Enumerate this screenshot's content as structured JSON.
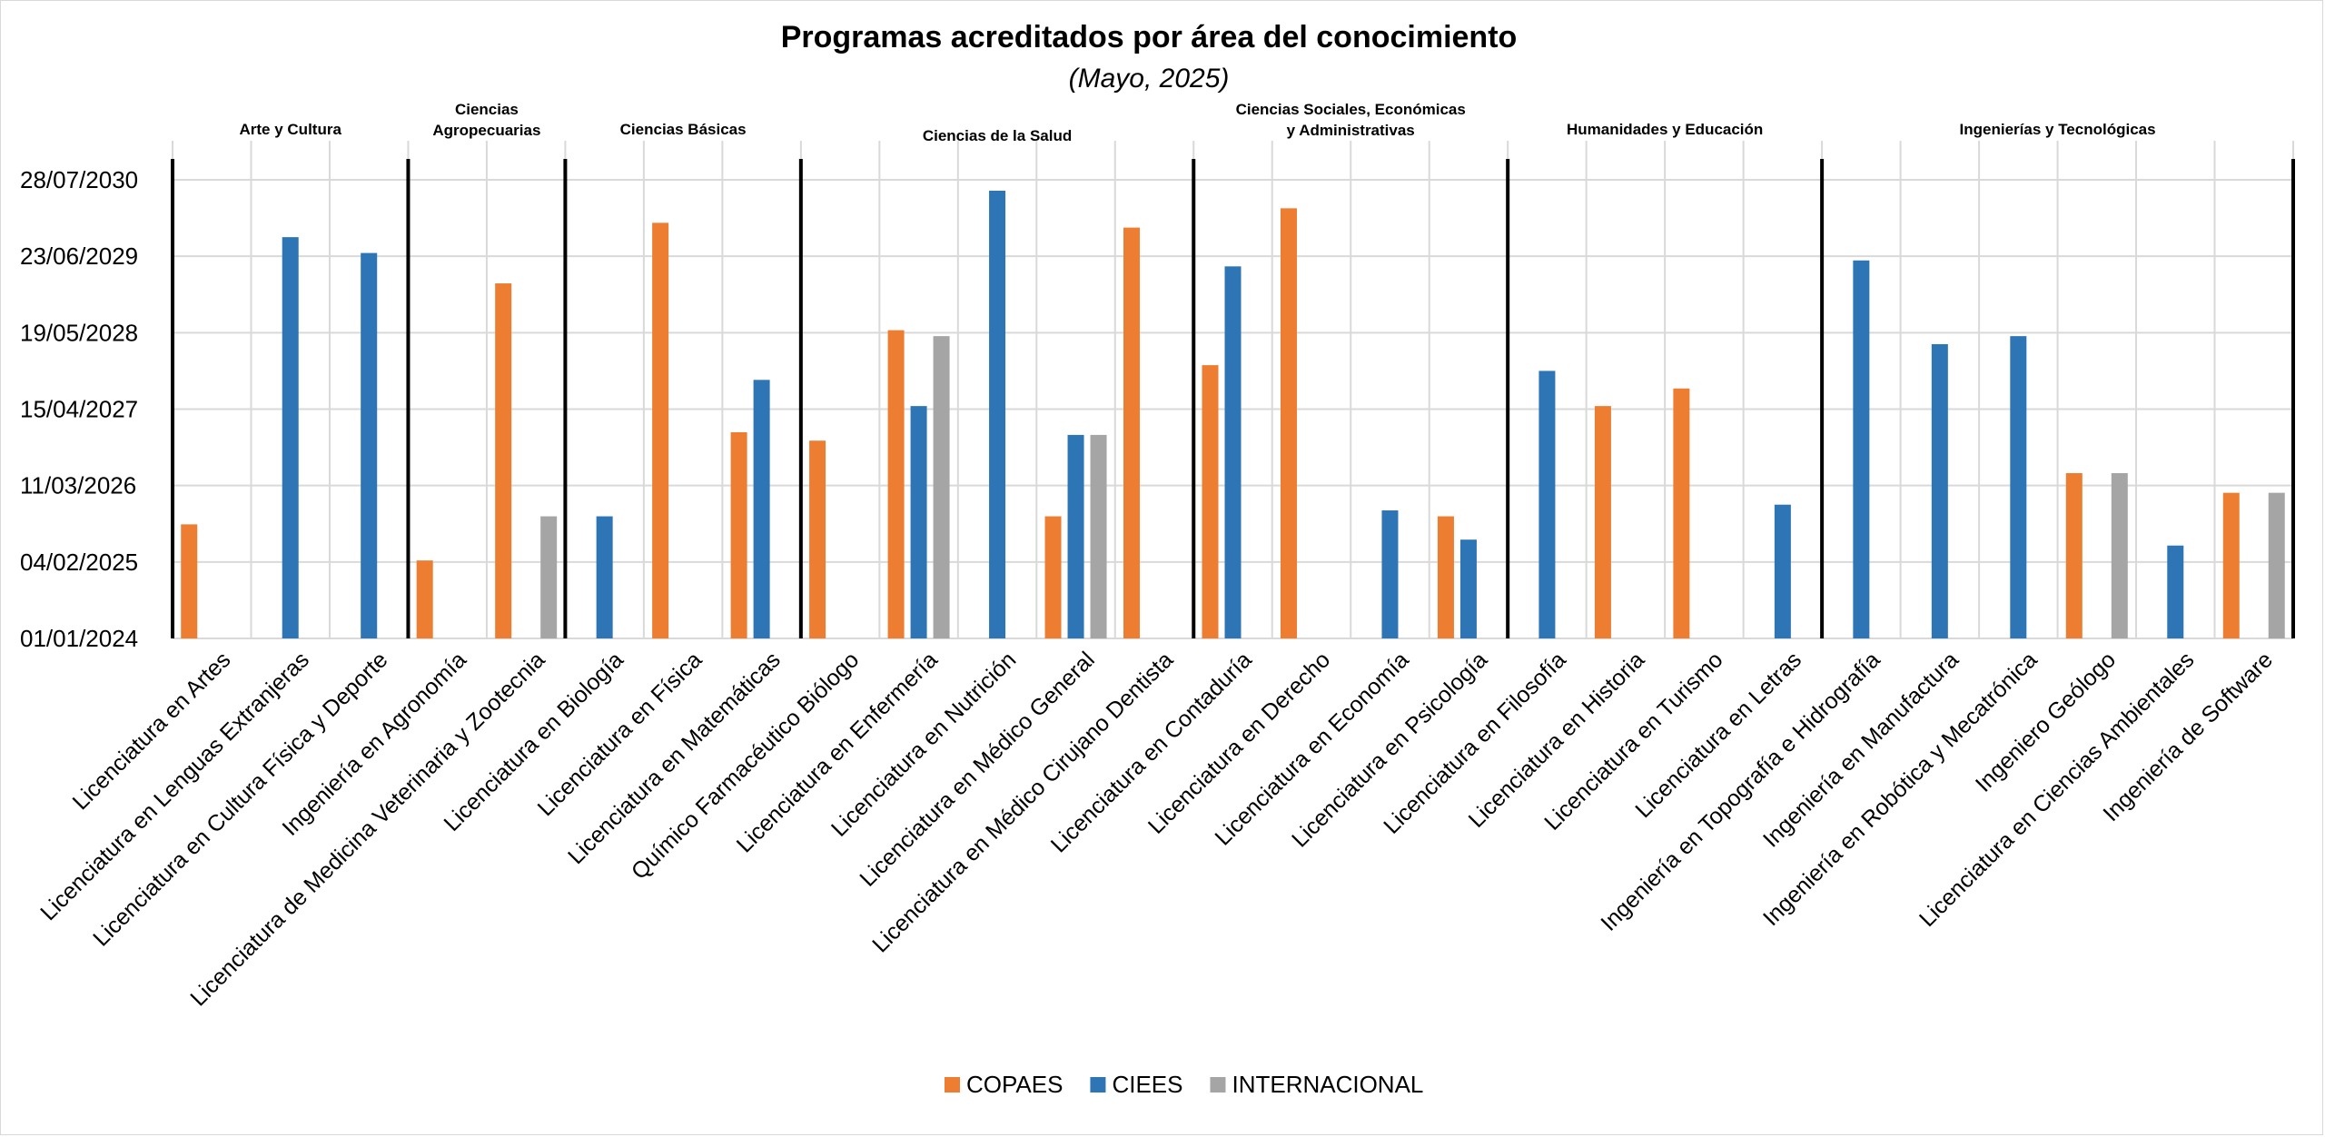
{
  "chart_data": {
    "type": "bar",
    "title": "Programas acreditados por área del conocimiento",
    "subtitle": "(Mayo, 2025)",
    "y_tick_labels": [
      "01/01/2024",
      "04/02/2025",
      "11/03/2026",
      "15/04/2027",
      "19/05/2028",
      "23/06/2029",
      "28/07/2030"
    ],
    "y_ticks": [
      "2024-01-01",
      "2025-02-04",
      "2026-03-11",
      "2027-04-15",
      "2028-05-19",
      "2029-06-23",
      "2030-07-28"
    ],
    "ylim": [
      "2024-01-01",
      "2030-07-28"
    ],
    "grid": true,
    "legend_position": "bottom",
    "colors": {
      "COPAES": "#ED7D31",
      "CIEES": "#2E75B6",
      "INTERNACIONAL": "#A5A5A5"
    },
    "series": [
      {
        "name": "COPAES"
      },
      {
        "name": "CIEES"
      },
      {
        "name": "INTERNACIONAL"
      }
    ],
    "groups": [
      {
        "label": [
          "Arte y Cultura"
        ],
        "categories": [
          0,
          1,
          2
        ]
      },
      {
        "label": [
          "Ciencias",
          "Agropecuarias"
        ],
        "categories": [
          3,
          4
        ]
      },
      {
        "label": [
          "Ciencias Básicas"
        ],
        "categories": [
          5,
          6,
          7
        ]
      },
      {
        "label": [
          "Ciencias de la Salud"
        ],
        "categories": [
          8,
          9,
          10,
          11,
          12
        ]
      },
      {
        "label": [
          "Ciencias Sociales, Económicas",
          "y Administrativas"
        ],
        "categories": [
          13,
          14,
          15,
          16
        ]
      },
      {
        "label": [
          "Humanidades y Educación"
        ],
        "categories": [
          17,
          18,
          19,
          20
        ]
      },
      {
        "label": [
          "Ingenierías y Tecnológicas"
        ],
        "categories": [
          21,
          22,
          23,
          24,
          25,
          26
        ]
      }
    ],
    "categories": [
      {
        "name": "Licenciatura en Artes",
        "COPAES": "2025-08-20",
        "CIEES": null,
        "INTERNACIONAL": null
      },
      {
        "name": "Licenciatura en Lenguas Extranjeras",
        "COPAES": null,
        "CIEES": "2029-10-01",
        "INTERNACIONAL": null
      },
      {
        "name": "Licenciatura en Cultura Física y Deporte",
        "COPAES": null,
        "CIEES": "2029-07-10",
        "INTERNACIONAL": null
      },
      {
        "name": "Ingeniería en Agronomía",
        "COPAES": "2025-02-12",
        "CIEES": null,
        "INTERNACIONAL": null
      },
      {
        "name": "Licenciatura de Medicina Veterinaria y Zootecnia",
        "COPAES": "2029-02-01",
        "CIEES": null,
        "INTERNACIONAL": "2025-10-01"
      },
      {
        "name": "Licenciatura en Biología",
        "COPAES": null,
        "CIEES": "2025-10-01",
        "INTERNACIONAL": null
      },
      {
        "name": "Licenciatura en Física",
        "COPAES": "2029-12-15",
        "CIEES": null,
        "INTERNACIONAL": null
      },
      {
        "name": "Licenciatura en Matemáticas",
        "COPAES": "2026-12-15",
        "CIEES": "2027-09-15",
        "INTERNACIONAL": null
      },
      {
        "name": "Químico Farmacéutico Biólogo",
        "COPAES": "2026-11-01",
        "CIEES": null,
        "INTERNACIONAL": null
      },
      {
        "name": "Licenciatura en Enfermería",
        "COPAES": "2028-06-01",
        "CIEES": "2027-05-01",
        "INTERNACIONAL": "2028-05-01"
      },
      {
        "name": "Licenciatura en Nutrición",
        "COPAES": null,
        "CIEES": "2030-06-01",
        "INTERNACIONAL": null
      },
      {
        "name": "Licenciatura en Médico General",
        "COPAES": "2025-10-01",
        "CIEES": "2026-12-01",
        "INTERNACIONAL": "2026-12-01"
      },
      {
        "name": "Licenciatura en Médico Cirujano Dentista",
        "COPAES": "2029-11-20",
        "CIEES": null,
        "INTERNACIONAL": null
      },
      {
        "name": "Licenciatura en Contaduría",
        "COPAES": "2027-12-01",
        "CIEES": "2029-05-01",
        "INTERNACIONAL": null
      },
      {
        "name": "Licenciatura en Derecho",
        "COPAES": "2030-03-01",
        "CIEES": null,
        "INTERNACIONAL": null
      },
      {
        "name": "Licenciatura en Economía",
        "COPAES": null,
        "CIEES": "2025-11-01",
        "INTERNACIONAL": null
      },
      {
        "name": "Licenciatura en Psicología",
        "COPAES": "2025-10-01",
        "CIEES": "2025-06-01",
        "INTERNACIONAL": null
      },
      {
        "name": "Licenciatura en Filosofía",
        "COPAES": null,
        "CIEES": "2027-11-01",
        "INTERNACIONAL": null
      },
      {
        "name": "Licenciatura en Historia",
        "COPAES": "2027-05-01",
        "CIEES": null,
        "INTERNACIONAL": null
      },
      {
        "name": "Licenciatura en Turismo",
        "COPAES": "2027-08-01",
        "CIEES": null,
        "INTERNACIONAL": null
      },
      {
        "name": "Licenciatura en Letras",
        "COPAES": null,
        "CIEES": "2025-12-01",
        "INTERNACIONAL": null
      },
      {
        "name": "Ingeniería en Topografía e Hidrografía",
        "COPAES": null,
        "CIEES": "2029-06-01",
        "INTERNACIONAL": null
      },
      {
        "name": "Ingeniería en Manufactura",
        "COPAES": null,
        "CIEES": "2028-03-20",
        "INTERNACIONAL": null
      },
      {
        "name": "Ingeniería en Robótica y Mecatrónica",
        "COPAES": null,
        "CIEES": "2028-05-01",
        "INTERNACIONAL": null
      },
      {
        "name": "Ingeniero Geólogo",
        "COPAES": "2026-05-15",
        "CIEES": null,
        "INTERNACIONAL": "2026-05-15"
      },
      {
        "name": "Licenciatura en Ciencias Ambientales",
        "COPAES": null,
        "CIEES": "2025-05-01",
        "INTERNACIONAL": null
      },
      {
        "name": "Ingeniería de Software",
        "COPAES": "2026-02-01",
        "CIEES": null,
        "INTERNACIONAL": "2026-02-01"
      }
    ]
  }
}
